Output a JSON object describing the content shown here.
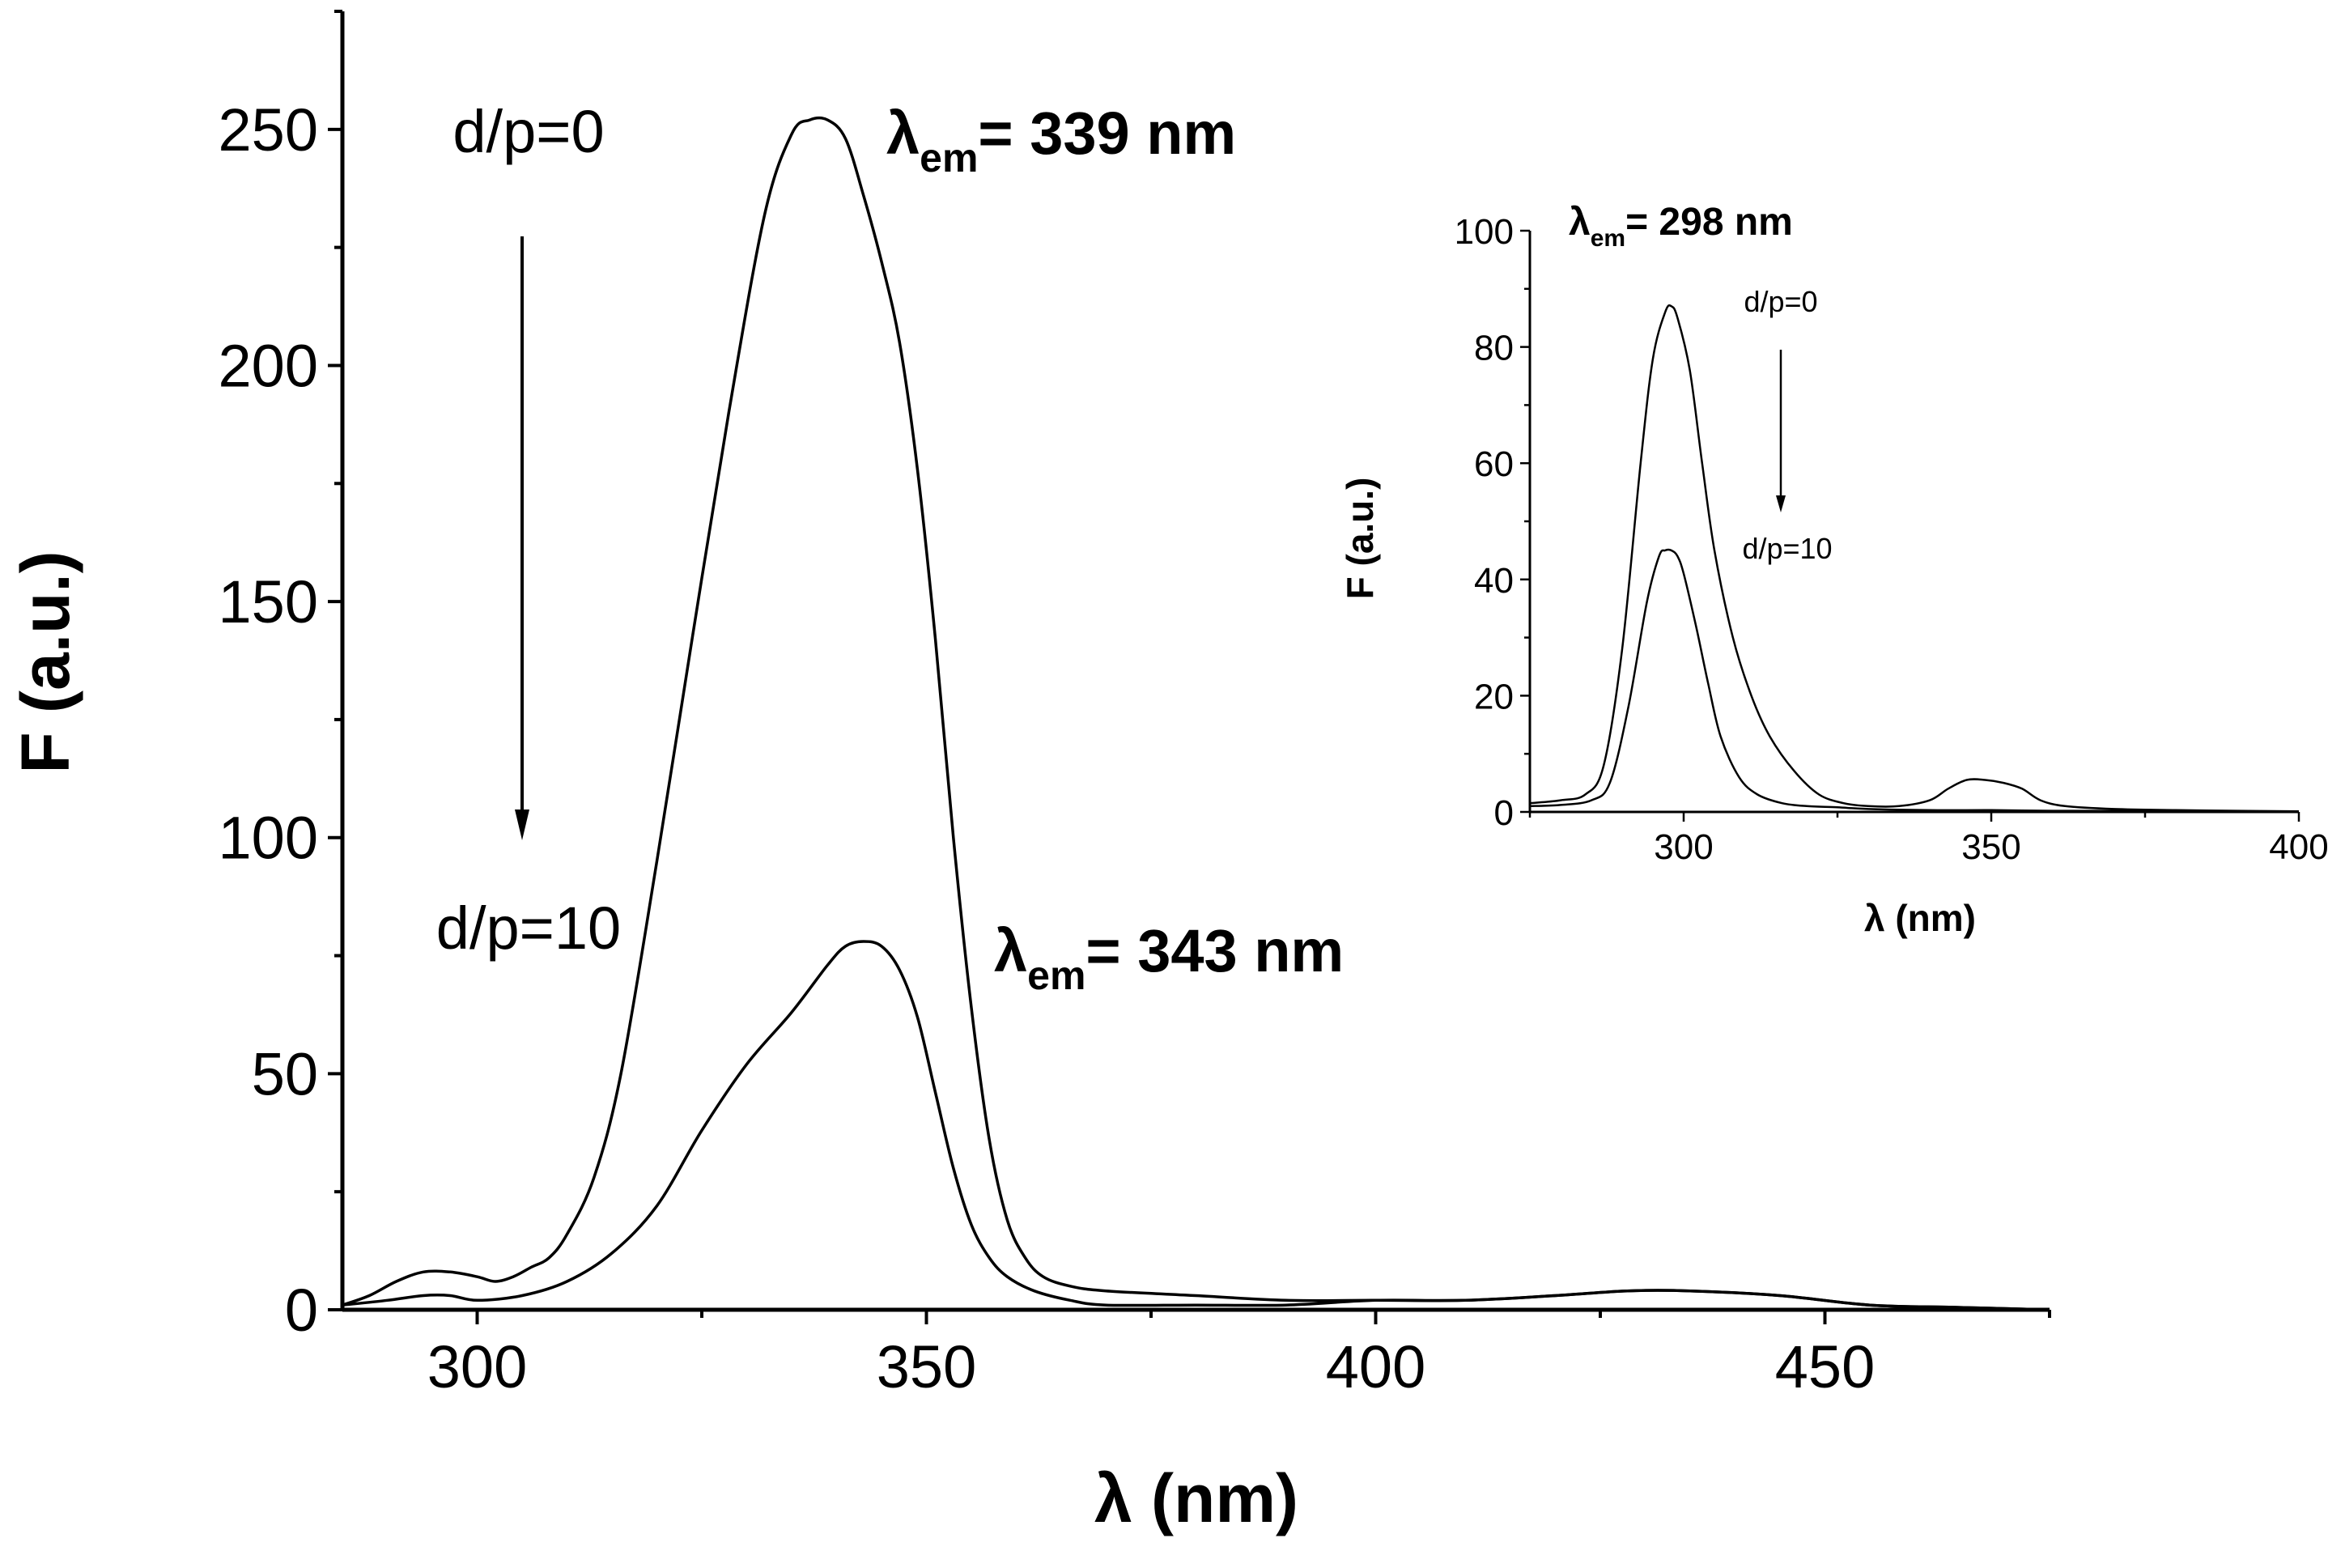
{
  "chart_data": [
    {
      "id": "main",
      "type": "line",
      "xlabel": "λ (nm)",
      "ylabel": "F (a.u.)",
      "xlim": [
        285,
        475
      ],
      "ylim": [
        0,
        275
      ],
      "xticks": [
        300,
        350,
        400,
        450
      ],
      "xtick_labels": [
        "300",
        "350",
        "400",
        "450"
      ],
      "yticks": [
        0,
        50,
        100,
        150,
        200,
        250
      ],
      "ytick_labels": [
        "0",
        "50",
        "100",
        "150",
        "200",
        "250"
      ],
      "series": [
        {
          "name": "d/p=0",
          "x": [
            285,
            288,
            291,
            294,
            297,
            300,
            302,
            304,
            306,
            308,
            310,
            313,
            316,
            320,
            324,
            328,
            332,
            335,
            337,
            339,
            341,
            343,
            345,
            347,
            349,
            351,
            353,
            355,
            357,
            359,
            361,
            363,
            366,
            370,
            380,
            390,
            400,
            410,
            420,
            428,
            435,
            445,
            455,
            465,
            475
          ],
          "values": [
            1,
            3,
            6,
            8,
            8,
            7,
            6,
            7,
            9,
            11,
            16,
            28,
            50,
            95,
            143,
            190,
            232,
            249,
            252,
            252,
            248,
            236,
            222,
            205,
            178,
            142,
            100,
            64,
            36,
            19,
            11,
            7,
            5,
            4,
            3,
            2,
            2,
            2,
            3,
            4,
            4,
            3,
            1,
            0.5,
            0
          ]
        },
        {
          "name": "d/p=10",
          "x": [
            285,
            290,
            294,
            297,
            300,
            305,
            310,
            315,
            320,
            325,
            330,
            335,
            339,
            341,
            343,
            345,
            347,
            349,
            351,
            353,
            355,
            357,
            359,
            362,
            366,
            370,
            380,
            390,
            400,
            410,
            420,
            428,
            435,
            445,
            455,
            465,
            475
          ],
          "values": [
            1,
            2,
            3,
            3,
            2,
            3,
            6,
            12,
            22,
            38,
            52,
            63,
            73,
            77,
            78,
            77,
            72,
            62,
            46,
            30,
            18,
            11,
            7,
            4,
            2,
            1,
            1,
            1,
            2,
            2,
            3,
            4,
            4,
            3,
            1,
            0.5,
            0
          ]
        }
      ],
      "annotations": {
        "top": "d/p=0",
        "bottom": "d/p=10",
        "lambda_symbol": "λ",
        "lambda_sub": "em",
        "peak_top": "= 339 nm",
        "peak_bottom": "= 343 nm"
      }
    },
    {
      "id": "inset",
      "type": "line",
      "xlabel": "λ (nm)",
      "ylabel": "F (a.u.)",
      "xlim": [
        275,
        400
      ],
      "ylim": [
        0,
        100
      ],
      "xticks": [
        300,
        350,
        400
      ],
      "xtick_labels": [
        "300",
        "350",
        "400"
      ],
      "yticks": [
        0,
        20,
        40,
        60,
        80,
        100
      ],
      "ytick_labels": [
        "0",
        "20",
        "40",
        "60",
        "80",
        "100"
      ],
      "series": [
        {
          "name": "d/p=0",
          "x": [
            275,
            280,
            284,
            287,
            290,
            293,
            295,
            297,
            298,
            299,
            301,
            303,
            305,
            308,
            311,
            314,
            318,
            322,
            326,
            330,
            335,
            340,
            343,
            346,
            349,
            352,
            355,
            358,
            362,
            370,
            380,
            390,
            400
          ],
          "values": [
            1.5,
            2,
            3,
            8,
            28,
            60,
            78,
            86,
            87,
            85,
            76,
            60,
            45,
            30,
            20,
            13,
            7,
            3,
            1.5,
            1,
            1,
            2,
            4,
            5.5,
            5.5,
            5,
            4,
            2,
            1,
            0.5,
            0.3,
            0.2,
            0.1
          ]
        },
        {
          "name": "d/p=10",
          "x": [
            275,
            280,
            285,
            288,
            291,
            294,
            296,
            297,
            298,
            299,
            300,
            302,
            304,
            306,
            309,
            312,
            316,
            320,
            325,
            330,
            340,
            350,
            360,
            370,
            380,
            390,
            400
          ],
          "values": [
            1,
            1.2,
            2,
            5,
            18,
            36,
            44,
            45,
            45,
            44,
            41,
            32,
            22,
            13,
            6,
            3,
            1.5,
            1,
            0.8,
            0.5,
            0.3,
            0.3,
            0.2,
            0.2,
            0.1,
            0.1,
            0
          ]
        }
      ],
      "annotations": {
        "top": "d/p=0",
        "bottom": "d/p=10",
        "lambda_symbol": "λ",
        "lambda_sub": "em",
        "peak": "= 298 nm"
      }
    }
  ]
}
